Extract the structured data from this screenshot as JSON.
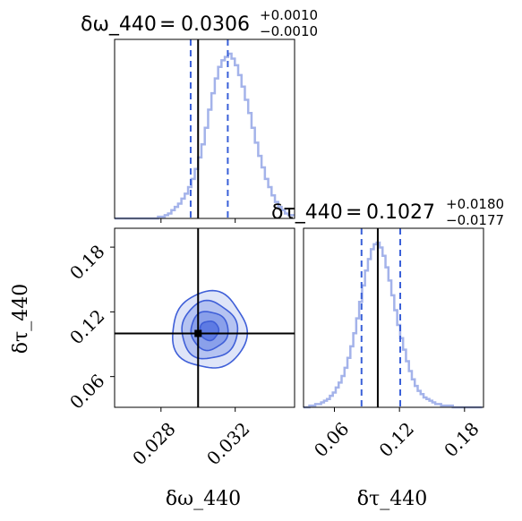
{
  "chart_data": [
    {
      "type": "histogram",
      "parameter": "δω_440",
      "title": {
        "label": "δω_440",
        "equals": "=",
        "value": "0.0306",
        "upper": "+0.0010",
        "lower": "−0.0010"
      },
      "xlim": [
        0.0255,
        0.0352
      ],
      "truth": 0.03,
      "quantiles": [
        0.0296,
        0.0316
      ],
      "bins": {
        "start": 0.0255,
        "width": 0.00018,
        "counts": [
          0,
          0,
          0,
          0,
          0,
          0,
          0,
          0,
          0,
          0,
          0,
          0,
          0,
          1,
          1,
          2,
          3,
          5,
          7,
          9,
          12,
          15,
          19,
          24,
          30,
          37,
          45,
          55,
          66,
          76,
          85,
          92,
          96,
          98,
          100,
          97,
          93,
          87,
          80,
          72,
          64,
          55,
          46,
          38,
          31,
          24,
          19,
          14,
          10,
          7,
          5,
          3,
          2,
          2,
          1,
          1,
          1,
          0,
          0,
          0,
          0,
          0,
          0,
          0
        ]
      },
      "xticks": [
        0.028,
        0.032
      ],
      "xtick_labels": [
        "",
        ""
      ]
    },
    {
      "type": "contour",
      "x_parameter": "δω_440",
      "y_parameter": "δτ_440",
      "xlim": [
        0.0255,
        0.0352
      ],
      "ylim": [
        0.0315,
        0.1975
      ],
      "center": [
        0.0306,
        0.1027
      ],
      "sigma": [
        0.001,
        0.0178
      ],
      "truth": [
        0.03,
        0.1
      ],
      "levels_sigma": [
        0.5,
        1.0,
        1.5,
        2.0
      ],
      "xticks": [
        0.028,
        0.032
      ],
      "xtick_labels": [
        "0.028",
        "0.032"
      ],
      "yticks": [
        0.06,
        0.12,
        0.18
      ],
      "ytick_labels": [
        "0.06",
        "0.12",
        "0.18"
      ],
      "xlabel": "δω_440",
      "ylabel": "δτ_440"
    },
    {
      "type": "histogram",
      "parameter": "δτ_440",
      "title": {
        "label": "δτ_440",
        "equals": "=",
        "value": "0.1027",
        "upper": "+0.0180",
        "lower": "−0.0177"
      },
      "xlim": [
        0.0315,
        0.1975
      ],
      "truth": 0.1,
      "quantiles": [
        0.085,
        0.1207
      ],
      "bins": {
        "start": 0.0315,
        "width": 0.0027,
        "counts": [
          0,
          0,
          1,
          1,
          2,
          2,
          3,
          4,
          5,
          7,
          9,
          12,
          15,
          19,
          24,
          30,
          37,
          45,
          54,
          64,
          74,
          83,
          90,
          96,
          99,
          100,
          97,
          92,
          85,
          77,
          68,
          59,
          50,
          42,
          35,
          28,
          22,
          17,
          13,
          10,
          8,
          6,
          5,
          4,
          3,
          2,
          2,
          1,
          1,
          1,
          1,
          0,
          0,
          0,
          0,
          0,
          0,
          0,
          0,
          0,
          0
        ]
      },
      "xticks": [
        0.06,
        0.12,
        0.18
      ],
      "xtick_labels": [
        "0.06",
        "0.12",
        "0.18"
      ],
      "xlabel": "δτ_440"
    }
  ],
  "colors": {
    "histogram": "#a4b3ea",
    "quantile": "#3a60d8",
    "contour_fill": [
      "#dfe5f8",
      "#b5c3f1",
      "#8aa0ea",
      "#5e7be3"
    ],
    "contour_edge": "#3f5fd8",
    "truth": "#000000"
  }
}
